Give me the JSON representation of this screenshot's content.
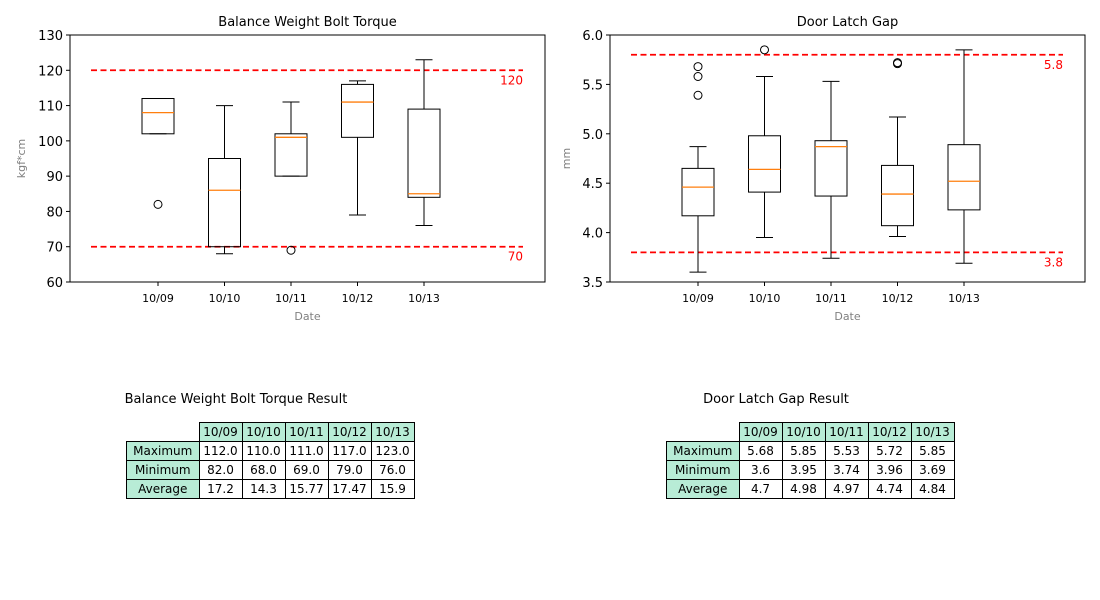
{
  "chart_data": [
    {
      "type": "box",
      "title": "Balance Weight Bolt Torque",
      "xlabel": "Date",
      "ylabel": "kgf*cm",
      "ylim": [
        60,
        130
      ],
      "yticks": [
        60,
        70,
        80,
        90,
        100,
        110,
        120,
        130
      ],
      "categories": [
        "10/09",
        "10/10",
        "10/11",
        "10/12",
        "10/13"
      ],
      "boxes": [
        {
          "whislo": 102,
          "q1": 102,
          "med": 108,
          "q3": 112,
          "whishi": 112,
          "fliers": [
            82
          ]
        },
        {
          "whislo": 68,
          "q1": 70,
          "med": 86,
          "q3": 95,
          "whishi": 110,
          "fliers": []
        },
        {
          "whislo": 90,
          "q1": 90,
          "med": 101,
          "q3": 102,
          "whishi": 111,
          "fliers": [
            69
          ]
        },
        {
          "whislo": 79,
          "q1": 101,
          "med": 111,
          "q3": 116,
          "whishi": 117,
          "fliers": []
        },
        {
          "whislo": 76,
          "q1": 84,
          "med": 85,
          "q3": 109,
          "whishi": 123,
          "fliers": []
        }
      ],
      "limits": [
        {
          "value": 120,
          "label": "120",
          "color": "#ff0000"
        },
        {
          "value": 70,
          "label": "70",
          "color": "#ff0000"
        }
      ],
      "box_color": "#000000",
      "median_color": "#ff7f0e"
    },
    {
      "type": "box",
      "title": "Door Latch Gap",
      "xlabel": "Date",
      "ylabel": "mm",
      "ylim": [
        3.5,
        6.0
      ],
      "yticks": [
        3.5,
        4.0,
        4.5,
        5.0,
        5.5,
        6.0
      ],
      "categories": [
        "10/09",
        "10/10",
        "10/11",
        "10/12",
        "10/13"
      ],
      "boxes": [
        {
          "whislo": 3.6,
          "q1": 4.17,
          "med": 4.46,
          "q3": 4.65,
          "whishi": 4.87,
          "fliers": [
            5.39,
            5.58,
            5.68
          ]
        },
        {
          "whislo": 3.95,
          "q1": 4.41,
          "med": 4.64,
          "q3": 4.98,
          "whishi": 5.58,
          "fliers": [
            5.85
          ]
        },
        {
          "whislo": 3.74,
          "q1": 4.37,
          "med": 4.87,
          "q3": 4.93,
          "whishi": 5.53,
          "fliers": []
        },
        {
          "whislo": 3.96,
          "q1": 4.07,
          "med": 4.39,
          "q3": 4.68,
          "whishi": 5.17,
          "fliers": [
            5.71,
            5.72
          ]
        },
        {
          "whislo": 3.69,
          "q1": 4.23,
          "med": 4.52,
          "q3": 4.89,
          "whishi": 5.85,
          "fliers": []
        }
      ],
      "limits": [
        {
          "value": 5.8,
          "label": "5.8",
          "color": "#ff0000"
        },
        {
          "value": 3.8,
          "label": "3.8",
          "color": "#ff0000"
        }
      ],
      "box_color": "#000000",
      "median_color": "#ff7f0e"
    }
  ],
  "tables": [
    {
      "title": "Balance Weight Bolt Torque Result",
      "columns": [
        "10/09",
        "10/10",
        "10/11",
        "10/12",
        "10/13"
      ],
      "rows": [
        {
          "label": "Maximum",
          "values": [
            "112.0",
            "110.0",
            "111.0",
            "117.0",
            "123.0"
          ]
        },
        {
          "label": "Minimum",
          "values": [
            "82.0",
            "68.0",
            "69.0",
            "79.0",
            "76.0"
          ]
        },
        {
          "label": "Average",
          "values": [
            "17.2",
            "14.3",
            "15.77",
            "17.47",
            "15.9"
          ]
        }
      ]
    },
    {
      "title": "Door Latch Gap Result",
      "columns": [
        "10/09",
        "10/10",
        "10/11",
        "10/12",
        "10/13"
      ],
      "rows": [
        {
          "label": "Maximum",
          "values": [
            "5.68",
            "5.85",
            "5.53",
            "5.72",
            "5.85"
          ]
        },
        {
          "label": "Minimum",
          "values": [
            "3.6",
            "3.95",
            "3.74",
            "3.96",
            "3.69"
          ]
        },
        {
          "label": "Average",
          "values": [
            "4.7",
            "4.98",
            "4.97",
            "4.74",
            "4.84"
          ]
        }
      ]
    }
  ]
}
